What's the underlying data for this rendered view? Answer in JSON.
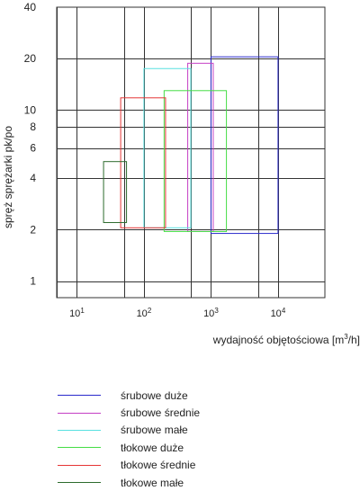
{
  "chart_data": {
    "type": "range-rectangles",
    "title": "",
    "xlabel_text": "wydajność objętościowa [m",
    "xlabel_unit_sup": "3",
    "xlabel_unit_end": "/h]",
    "ylabel": "spręż sprężarki pk/po",
    "x_scale": "log",
    "xlim": [
      5,
      50000
    ],
    "ylim": [
      0.8,
      40
    ],
    "x_tick_values": [
      10,
      100,
      1000,
      10000
    ],
    "x_tick_labels": [
      {
        "base": "10",
        "exp": "1"
      },
      {
        "base": "10",
        "exp": "2"
      },
      {
        "base": "10",
        "exp": "3"
      },
      {
        "base": "10",
        "exp": "4"
      }
    ],
    "y_tick_values": [
      1,
      2,
      4,
      6,
      8,
      10,
      20,
      40
    ],
    "y_tick_labels": [
      "1",
      "2",
      "4",
      "6",
      "8",
      "10",
      "20",
      "40"
    ],
    "x_grid": [
      5,
      10,
      50,
      100,
      500,
      1000,
      5000,
      10000
    ],
    "y_grid": [
      1,
      2,
      4,
      6,
      8,
      10,
      20
    ],
    "grid": true,
    "legend_position": "bottom-left",
    "series": [
      {
        "name": "śrubowe duże",
        "color": "#2a2acc",
        "x": [
          1000,
          10000
        ],
        "y": [
          1.9,
          20.5
        ]
      },
      {
        "name": "śrubowe średnie",
        "color": "#c43ec4",
        "x": [
          450,
          1080
        ],
        "y": [
          1.95,
          18.8
        ]
      },
      {
        "name": "śrubowe małe",
        "color": "#58e0e0",
        "x": [
          100,
          500
        ],
        "y": [
          2.05,
          17.5
        ]
      },
      {
        "name": "tłokowe duże",
        "color": "#44dd44",
        "x": [
          200,
          1700
        ],
        "y": [
          1.95,
          13.0
        ]
      },
      {
        "name": "tłokowe średnie",
        "color": "#e53535",
        "x": [
          45,
          210
        ],
        "y": [
          2.05,
          11.8
        ]
      },
      {
        "name": "tłokowe małe",
        "color": "#2d6b2d",
        "x": [
          25,
          55
        ],
        "y": [
          2.2,
          5.0
        ]
      }
    ]
  }
}
